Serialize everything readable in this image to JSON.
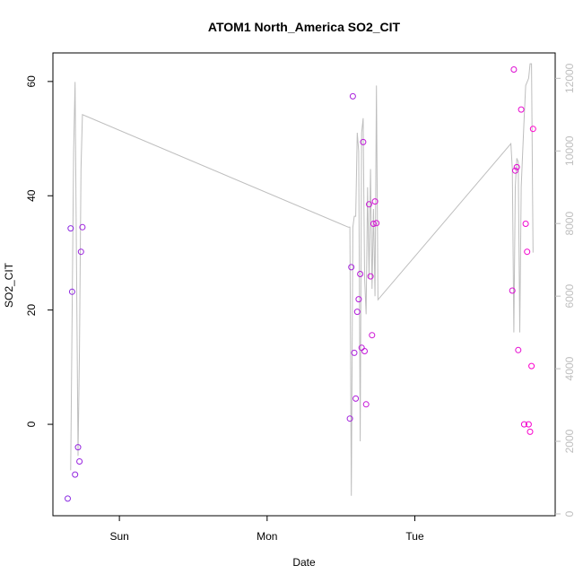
{
  "chart_data": {
    "type": "scatter",
    "title": "ATOM1 North_America SO2_CIT",
    "xlabel": "Date",
    "ylabel": "SO2_CIT",
    "xlim": [
      -0.45,
      2.95
    ],
    "ylim": [
      -16,
      65
    ],
    "y2lim": [
      -50,
      12700
    ],
    "x_ticks": [
      {
        "value": 0,
        "label": "Sun"
      },
      {
        "value": 1,
        "label": "Mon"
      },
      {
        "value": 2,
        "label": "Tue"
      }
    ],
    "y_ticks": [
      0,
      20,
      40,
      60
    ],
    "y2_ticks": [
      0,
      2000,
      4000,
      6000,
      8000,
      10000,
      12000
    ],
    "grid": false,
    "legend": "none",
    "colors": {
      "line": "#bebebe",
      "point_start": "#8a2be2",
      "point_end": "#ff00cc",
      "axis": "#000000"
    },
    "series": [
      {
        "type": "scatter",
        "axis": "left",
        "color_gradient": [
          "#8a2be2",
          "#ff00cc"
        ],
        "x": [
          -0.35,
          -0.33,
          -0.32,
          -0.3,
          -0.28,
          -0.27,
          -0.26,
          -0.25,
          1.56,
          1.57,
          1.58,
          1.59,
          1.6,
          1.61,
          1.62,
          1.63,
          1.64,
          1.65,
          1.66,
          1.67,
          1.69,
          1.7,
          1.71,
          1.72,
          1.73,
          1.74,
          2.66,
          2.67,
          2.68,
          2.69,
          2.7,
          2.72,
          2.74,
          2.75,
          2.76,
          2.77,
          2.78,
          2.79,
          2.8
        ],
        "y": [
          -13,
          34.3,
          23.2,
          -8.8,
          -4,
          -6.5,
          30.2,
          34.5,
          1,
          27.5,
          57.4,
          12.5,
          4.5,
          19.7,
          21.9,
          26.3,
          13.4,
          49.4,
          12.8,
          3.5,
          38.5,
          25.9,
          15.6,
          35.1,
          39,
          35.2,
          23.4,
          62.1,
          44.4,
          45,
          13,
          55.1,
          0,
          35.1,
          30.2,
          0,
          -1.3,
          10.2,
          51.7
        ]
      },
      {
        "type": "line",
        "axis": "right",
        "color": "#bebebe",
        "x": [
          -0.33,
          -0.31,
          -0.3,
          -0.28,
          -0.27,
          -0.26,
          -0.25,
          1.55,
          1.56,
          1.57,
          1.58,
          1.59,
          1.6,
          1.61,
          1.62,
          1.63,
          1.64,
          1.65,
          1.66,
          1.67,
          1.68,
          1.69,
          1.7,
          1.71,
          1.72,
          1.73,
          1.74,
          1.75,
          2.65,
          2.66,
          2.67,
          2.68,
          2.69,
          2.7,
          2.71,
          2.72,
          2.73,
          2.74,
          2.75,
          2.77,
          2.78,
          2.79,
          2.8
        ],
        "y": [
          1200,
          10000,
          11900,
          1600,
          4500,
          9500,
          11000,
          7900,
          7900,
          500,
          7900,
          8200,
          8200,
          10500,
          10000,
          2000,
          10500,
          10900,
          6500,
          5500,
          9000,
          6500,
          9500,
          6200,
          8400,
          6000,
          11800,
          5900,
          10200,
          9500,
          5000,
          9000,
          9800,
          9700,
          5000,
          9000,
          10000,
          10900,
          11800,
          12000,
          12400,
          12400,
          7200
        ]
      }
    ]
  }
}
